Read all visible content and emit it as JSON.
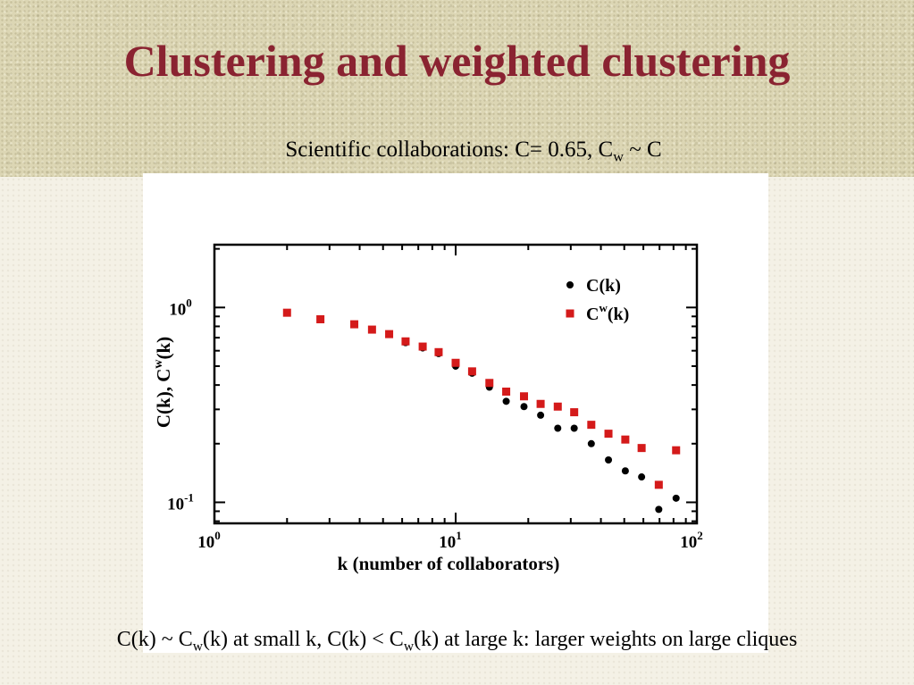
{
  "slide": {
    "title": "Clustering and weighted clustering",
    "subtitle": {
      "main": "Scientific collaborations: C= 0.65, C",
      "sub": "w",
      "tail": " ~ C"
    },
    "caption": {
      "p1": "C(k) ~ C",
      "s1": "w",
      "p2": "(k) at small k, C(k) < C",
      "s2": "w",
      "p3": "(k) at large k: larger weights on large cliques"
    }
  },
  "chart_data": {
    "type": "scatter",
    "x_scale": "log",
    "y_scale": "log",
    "xlim": [
      1,
      100
    ],
    "ylim": [
      0.078,
      2.1
    ],
    "xlabel": "k (number of collaborators)",
    "ylabel": {
      "a": "C(k), C",
      "sup": "w",
      "b": "(k)"
    },
    "xticks": [
      {
        "value": 1,
        "base": "10",
        "exp": "0"
      },
      {
        "value": 10,
        "base": "10",
        "exp": "1"
      },
      {
        "value": 100,
        "base": "10",
        "exp": "2"
      }
    ],
    "yticks": [
      {
        "value": 1,
        "base": "10",
        "exp": "0"
      },
      {
        "value": 0.1,
        "base": "10",
        "exp": "-1"
      }
    ],
    "legend_position": "top-right",
    "series": [
      {
        "name": "C(k)",
        "legend_sup": "",
        "legend_tail": "",
        "marker": "circle",
        "color": "#000000",
        "points": [
          [
            2.0,
            0.94
          ],
          [
            2.75,
            0.87
          ],
          [
            3.8,
            0.82
          ],
          [
            4.5,
            0.77
          ],
          [
            5.3,
            0.73
          ],
          [
            6.2,
            0.66
          ],
          [
            7.3,
            0.62
          ],
          [
            8.5,
            0.58
          ],
          [
            10.0,
            0.5
          ],
          [
            11.7,
            0.46
          ],
          [
            13.8,
            0.39
          ],
          [
            16.2,
            0.33
          ],
          [
            19.2,
            0.31
          ],
          [
            22.5,
            0.28
          ],
          [
            26.5,
            0.24
          ],
          [
            31.0,
            0.24
          ],
          [
            36.5,
            0.2
          ],
          [
            43.0,
            0.165
          ],
          [
            50.5,
            0.145
          ],
          [
            59.0,
            0.135
          ],
          [
            69.5,
            0.092
          ],
          [
            82.0,
            0.105
          ]
        ]
      },
      {
        "name": "C",
        "legend_sup": "w",
        "legend_tail": "(k)",
        "marker": "square",
        "color": "#d41a1a",
        "points": [
          [
            2.0,
            0.94
          ],
          [
            2.75,
            0.87
          ],
          [
            3.8,
            0.82
          ],
          [
            4.5,
            0.77
          ],
          [
            5.3,
            0.73
          ],
          [
            6.2,
            0.67
          ],
          [
            7.3,
            0.63
          ],
          [
            8.5,
            0.59
          ],
          [
            10.0,
            0.52
          ],
          [
            11.7,
            0.47
          ],
          [
            13.8,
            0.41
          ],
          [
            16.2,
            0.37
          ],
          [
            19.2,
            0.35
          ],
          [
            22.5,
            0.32
          ],
          [
            26.5,
            0.31
          ],
          [
            31.0,
            0.29
          ],
          [
            36.5,
            0.25
          ],
          [
            43.0,
            0.225
          ],
          [
            50.5,
            0.21
          ],
          [
            59.0,
            0.19
          ],
          [
            69.5,
            0.123
          ],
          [
            82.0,
            0.185
          ]
        ]
      }
    ]
  }
}
